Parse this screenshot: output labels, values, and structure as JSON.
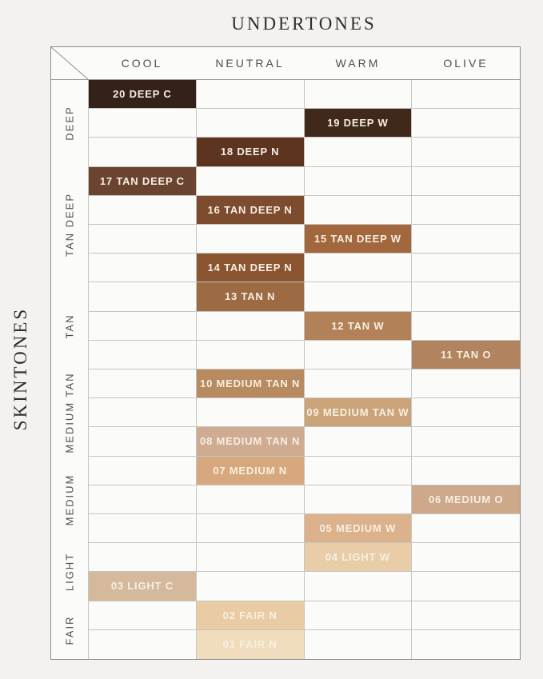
{
  "titles": {
    "top": "UNDERTONES",
    "side": "SKINTONES"
  },
  "colors": {
    "page_background": "#f3f2f0",
    "cell_background": "#fbfbfa",
    "outer_border": "#8f8d88",
    "grid_line": "#c7c5c0",
    "heading_text": "#2f2e2b",
    "axis_label_text": "#504e4a",
    "chip_text": "#f7efe2"
  },
  "chart_data": {
    "type": "table",
    "title": "UNDERTONES",
    "row_axis_label": "SKINTONES",
    "columns": [
      "COOL",
      "NEUTRAL",
      "WARM",
      "OLIVE"
    ],
    "total_rows": 20,
    "row_groups": [
      {
        "label": "DEEP",
        "rows": 3
      },
      {
        "label": "TAN DEEP",
        "rows": 4
      },
      {
        "label": "TAN",
        "rows": 3
      },
      {
        "label": "MEDIUM TAN",
        "rows": 3
      },
      {
        "label": "MEDIUM",
        "rows": 3
      },
      {
        "label": "LIGHT",
        "rows": 2
      },
      {
        "label": "FAIR",
        "rows": 2
      }
    ],
    "cells": [
      {
        "row": 1,
        "group": "DEEP",
        "column": "COOL",
        "label": "20 DEEP C",
        "color": "#34211a"
      },
      {
        "row": 2,
        "group": "DEEP",
        "column": "WARM",
        "label": "19 DEEP W",
        "color": "#40281a"
      },
      {
        "row": 3,
        "group": "DEEP",
        "column": "NEUTRAL",
        "label": "18 DEEP N",
        "color": "#5d3420"
      },
      {
        "row": 4,
        "group": "TAN DEEP",
        "column": "COOL",
        "label": "17 TAN DEEP C",
        "color": "#6a4431"
      },
      {
        "row": 5,
        "group": "TAN DEEP",
        "column": "NEUTRAL",
        "label": "16 TAN DEEP N",
        "color": "#7d4b2d"
      },
      {
        "row": 6,
        "group": "TAN DEEP",
        "column": "WARM",
        "label": "15 TAN DEEP W",
        "color": "#a2673c"
      },
      {
        "row": 7,
        "group": "TAN DEEP",
        "column": "NEUTRAL",
        "label": "14 TAN DEEP N",
        "color": "#8b5532"
      },
      {
        "row": 8,
        "group": "TAN",
        "column": "NEUTRAL",
        "label": "13 TAN N",
        "color": "#9c6a43"
      },
      {
        "row": 9,
        "group": "TAN",
        "column": "WARM",
        "label": "12 TAN W",
        "color": "#b28157"
      },
      {
        "row": 10,
        "group": "TAN",
        "column": "OLIVE",
        "label": "11 TAN O",
        "color": "#b1835f"
      },
      {
        "row": 11,
        "group": "MEDIUM TAN",
        "column": "NEUTRAL",
        "label": "10 MEDIUM TAN N",
        "color": "#b78a5f"
      },
      {
        "row": 12,
        "group": "MEDIUM TAN",
        "column": "WARM",
        "label": "09 MEDIUM TAN W",
        "color": "#caa478"
      },
      {
        "row": 13,
        "group": "MEDIUM TAN",
        "column": "NEUTRAL",
        "label": "08 MEDIUM TAN N",
        "color": "#cfab92"
      },
      {
        "row": 14,
        "group": "MEDIUM",
        "column": "NEUTRAL",
        "label": "07 MEDIUM N",
        "color": "#d7a87e"
      },
      {
        "row": 15,
        "group": "MEDIUM",
        "column": "OLIVE",
        "label": "06 MEDIUM O",
        "color": "#cda88a"
      },
      {
        "row": 16,
        "group": "MEDIUM",
        "column": "WARM",
        "label": "05 MEDIUM W",
        "color": "#dcb28c"
      },
      {
        "row": 17,
        "group": "LIGHT",
        "column": "WARM",
        "label": "04 LIGHT W",
        "color": "#e9cda8"
      },
      {
        "row": 18,
        "group": "LIGHT",
        "column": "COOL",
        "label": "03 LIGHT C",
        "color": "#d4b99c"
      },
      {
        "row": 19,
        "group": "FAIR",
        "column": "NEUTRAL",
        "label": "02 FAIR N",
        "color": "#e9cba4"
      },
      {
        "row": 20,
        "group": "FAIR",
        "column": "NEUTRAL",
        "label": "01 FAIR N",
        "color": "#f1ddbe"
      }
    ]
  }
}
